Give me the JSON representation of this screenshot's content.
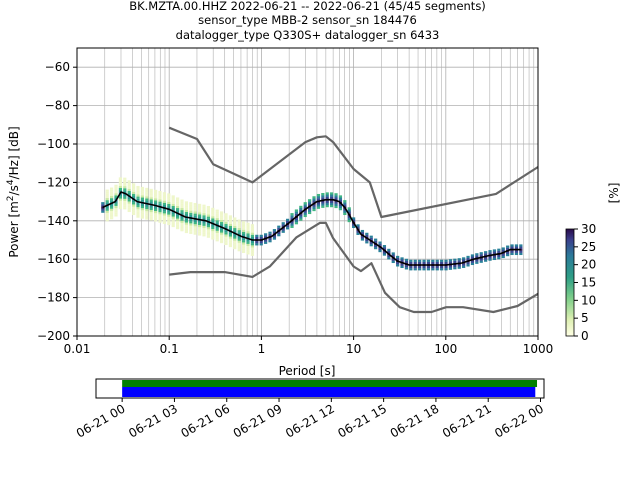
{
  "title": {
    "line1": "BK.MZTA.00.HHZ   2022-06-21 -- 2022-06-21  (45/45 segments)",
    "line2": "sensor_type MBB-2 sensor_sn 184476",
    "line3": "datalogger_type Q330S+ datalogger_sn 6433"
  },
  "chart_data": [
    {
      "type": "heatmap",
      "title": "BK.MZTA.00.HHZ   2022-06-21 -- 2022-06-21  (45/45 segments)",
      "xlabel": "Period [s]",
      "ylabel": "Power [m²/s⁴/Hz] [dB]",
      "xscale": "log",
      "xlim": [
        0.01,
        1000
      ],
      "ylim": [
        -200,
        -50
      ],
      "x_tick_labels": [
        "0.01",
        "0.1",
        "1",
        "10",
        "100",
        "1000"
      ],
      "x_ticks": [
        0.01,
        0.1,
        1,
        10,
        100,
        1000
      ],
      "y_ticks": [
        -200,
        -180,
        -160,
        -140,
        -120,
        -100,
        -80,
        -60
      ],
      "grid": true,
      "colorbar": {
        "label": "[%]",
        "range": [
          0,
          30
        ],
        "ticks": [
          0,
          5,
          10,
          15,
          20,
          25,
          30
        ]
      },
      "series": [
        {
          "name": "",
          "style": "mean",
          "color": "#000000",
          "x": [
            0.019,
            0.026,
            0.03,
            0.034,
            0.045,
            0.07,
            0.1,
            0.15,
            0.25,
            0.4,
            0.6,
            0.8,
            1.0,
            1.3,
            2.0,
            3.0,
            4.0,
            5.0,
            6.0,
            7.0,
            8.0,
            9.0,
            10.0,
            12.0,
            15.0,
            20.0,
            25.0,
            30.0,
            40.0,
            60.0,
            100.0,
            150.0,
            200.0,
            300.0,
            400.0,
            500.0,
            650.0
          ],
          "y": [
            -133,
            -130,
            -125,
            -126,
            -130,
            -132,
            -134,
            -138,
            -140,
            -144,
            -148,
            -150,
            -150,
            -148,
            -141,
            -134,
            -130,
            -129,
            -129,
            -130,
            -133,
            -137,
            -141,
            -147,
            -150,
            -154,
            -158,
            -161,
            -163,
            -163,
            -163,
            -162,
            -160,
            -158,
            -157,
            -155,
            -155
          ]
        },
        {
          "name": "",
          "style": "model-high",
          "color": "#666666",
          "x": [
            0.1,
            0.2,
            0.3,
            0.8,
            3.0,
            4.0,
            5.0,
            6.0,
            10.0,
            15.0,
            20.0,
            350.0,
            1000.0
          ],
          "y": [
            -91.5,
            -97.4,
            -110.5,
            -120,
            -99,
            -96.5,
            -96,
            -99,
            -113,
            -120,
            -138,
            -126,
            -112
          ]
        },
        {
          "name": "",
          "style": "model-low",
          "color": "#666666",
          "x": [
            0.1,
            0.17,
            0.4,
            0.8,
            1.24,
            2.4,
            4.3,
            5.0,
            6.0,
            10.0,
            12.0,
            15.6,
            21.9,
            31.6,
            45.0,
            70.0,
            101.0,
            154.0,
            328.0,
            600.0,
            1000.0
          ],
          "y": [
            -168,
            -166.7,
            -166.7,
            -169.2,
            -163.7,
            -148.6,
            -141.1,
            -141.1,
            -149,
            -163.8,
            -166.2,
            -162.1,
            -177.5,
            -185,
            -187.5,
            -187.5,
            -185,
            -185,
            -187.5,
            -184.4,
            -178
          ]
        }
      ]
    },
    {
      "type": "timeline",
      "x_tick_labels": [
        "06-21 00",
        "06-21 03",
        "06-21 06",
        "06-21 09",
        "06-21 12",
        "06-21 15",
        "06-21 18",
        "06-21 21",
        "06-22 00"
      ],
      "xlim": [
        -1.5,
        24.2
      ],
      "series": [
        {
          "name": "",
          "color": "#008000",
          "start_hours": 0,
          "end_hours": 23.8
        },
        {
          "name": "",
          "color": "#0000ff",
          "start_hours": 0,
          "end_hours": 23.7
        }
      ]
    }
  ]
}
